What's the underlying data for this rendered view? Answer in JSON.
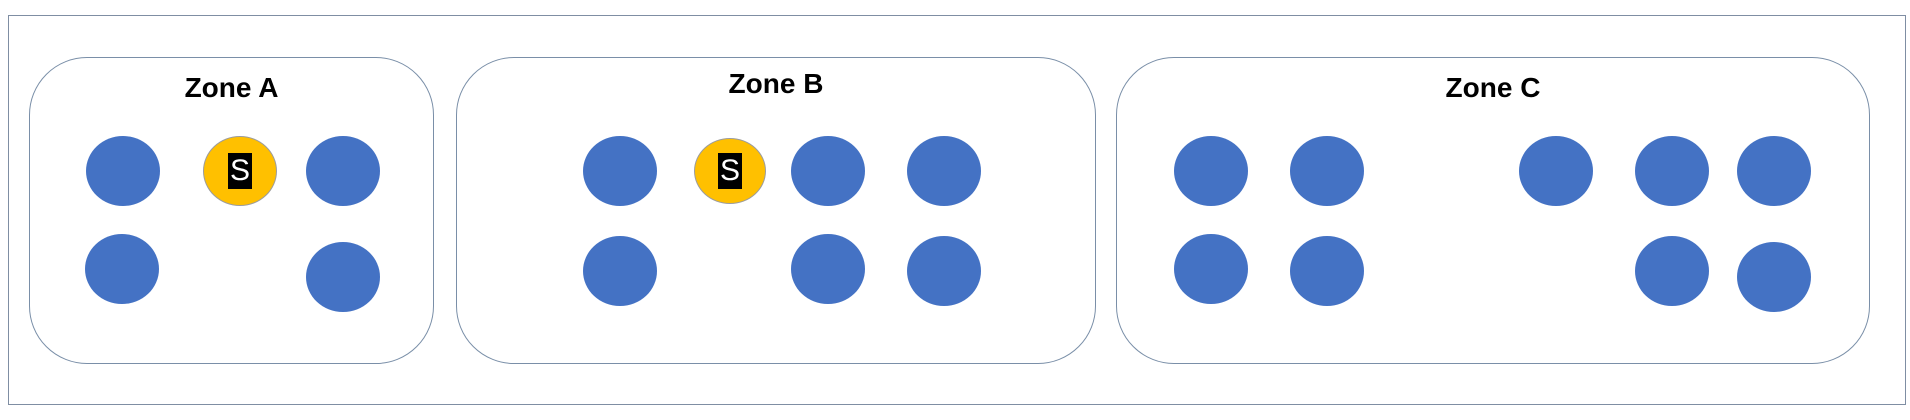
{
  "zones": [
    {
      "title": "Zone A",
      "nodes": [
        {
          "kind": "node"
        },
        {
          "kind": "special",
          "label": "S"
        },
        {
          "kind": "node"
        },
        {
          "kind": "node"
        },
        {
          "kind": "node"
        }
      ]
    },
    {
      "title": "Zone B",
      "nodes": [
        {
          "kind": "node"
        },
        {
          "kind": "special",
          "label": "S"
        },
        {
          "kind": "node"
        },
        {
          "kind": "node"
        },
        {
          "kind": "node"
        },
        {
          "kind": "node"
        },
        {
          "kind": "node"
        }
      ]
    },
    {
      "title": "Zone C",
      "nodes": [
        {
          "kind": "node"
        },
        {
          "kind": "node"
        },
        {
          "kind": "node"
        },
        {
          "kind": "node"
        },
        {
          "kind": "node"
        },
        {
          "kind": "node"
        },
        {
          "kind": "node"
        },
        {
          "kind": "node"
        },
        {
          "kind": "node"
        }
      ]
    }
  ],
  "colors": {
    "node": "#4472c4",
    "special": "#ffc000",
    "special_label_bg": "#000000",
    "special_label_text": "#ffffff",
    "border": "#7a8fa8"
  }
}
